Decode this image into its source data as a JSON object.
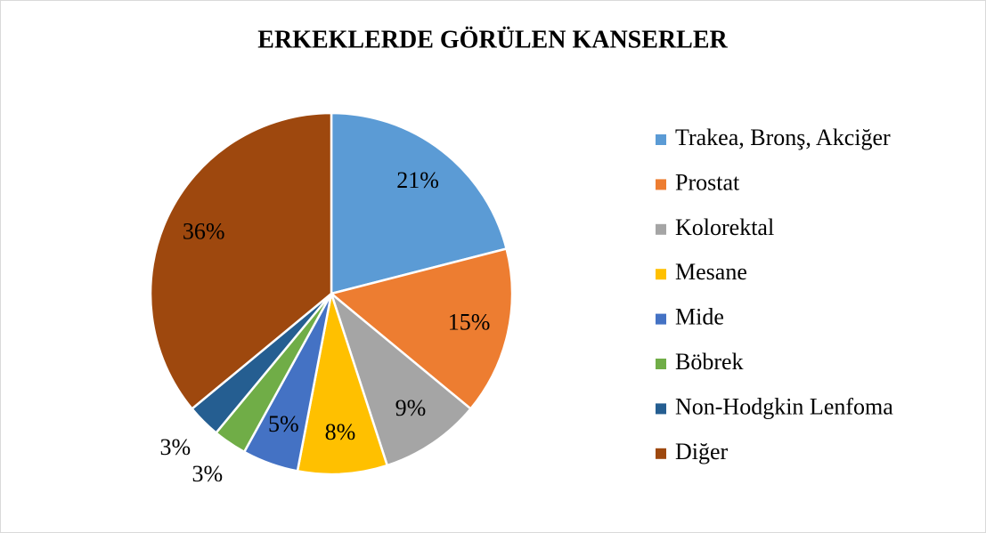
{
  "chart_data": {
    "type": "pie",
    "title": "ERKEKLERDE GÖRÜLEN KANSERLER",
    "categories": [
      "Trakea, Bronş, Akciğer",
      "Prostat",
      "Kolorektal",
      "Mesane",
      "Mide",
      "Böbrek",
      "Non-Hodgkin Lenfoma",
      "Diğer"
    ],
    "values": [
      21,
      15,
      9,
      8,
      5,
      3,
      3,
      36
    ],
    "value_labels": [
      "21%",
      "15%",
      "9%",
      "8%",
      "5%",
      "3%",
      "3%",
      "36%"
    ],
    "colors": [
      "#5b9bd5",
      "#ed7d31",
      "#a5a5a5",
      "#ffc000",
      "#4472c4",
      "#70ad47",
      "#255e91",
      "#9e480e"
    ],
    "legend": "right"
  }
}
